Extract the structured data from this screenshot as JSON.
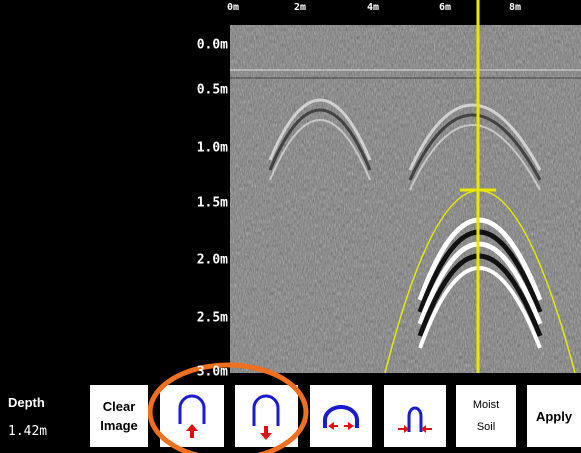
{
  "x_axis_labels": [
    "0m",
    "2m",
    "4m",
    "6m",
    "8m"
  ],
  "depth_axis_labels": [
    "0.0m",
    "0.5m",
    "1.0m",
    "1.5m",
    "2.0m",
    "2.5m",
    "3.0m"
  ],
  "depth_readout": {
    "label": "Depth",
    "value": "1.42m"
  },
  "buttons": [
    {
      "lines": [
        "Clear",
        "Image"
      ]
    },
    {
      "lines": [
        "Moist",
        "Soil"
      ]
    },
    {
      "lines": [
        "Apply"
      ]
    }
  ]
}
